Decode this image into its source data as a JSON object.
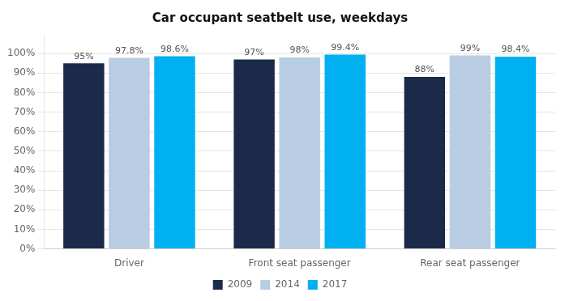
{
  "chart_data": {
    "type": "bar",
    "title": "Car occupant seatbelt use, weekdays",
    "categories": [
      "Driver",
      "Front seat passenger",
      "Rear seat passenger"
    ],
    "series": [
      {
        "name": "2009",
        "color": "#1b2a4a",
        "values": [
          95,
          97,
          88
        ],
        "value_labels": [
          "95%",
          "97%",
          "88%"
        ]
      },
      {
        "name": "2014",
        "color": "#b8cce4",
        "values": [
          97.8,
          98,
          99
        ],
        "value_labels": [
          "97.8%",
          "98%",
          "99%"
        ]
      },
      {
        "name": "2017",
        "color": "#00b0f0",
        "values": [
          98.6,
          99.4,
          98.4
        ],
        "value_labels": [
          "98.6%",
          "99.4%",
          "98.4%"
        ]
      }
    ],
    "ylim": [
      0,
      110
    ],
    "yticks": [
      {
        "value": 0,
        "label": "0%"
      },
      {
        "value": 10,
        "label": "10%"
      },
      {
        "value": 20,
        "label": "20%"
      },
      {
        "value": 30,
        "label": "30%"
      },
      {
        "value": 40,
        "label": "40%"
      },
      {
        "value": 50,
        "label": "50%"
      },
      {
        "value": 60,
        "label": "60%"
      },
      {
        "value": 70,
        "label": "70%"
      },
      {
        "value": 80,
        "label": "80%"
      },
      {
        "value": 90,
        "label": "90%"
      },
      {
        "value": 100,
        "label": "100%"
      }
    ],
    "grid": true,
    "legend": "bottom",
    "data_labels": true
  }
}
